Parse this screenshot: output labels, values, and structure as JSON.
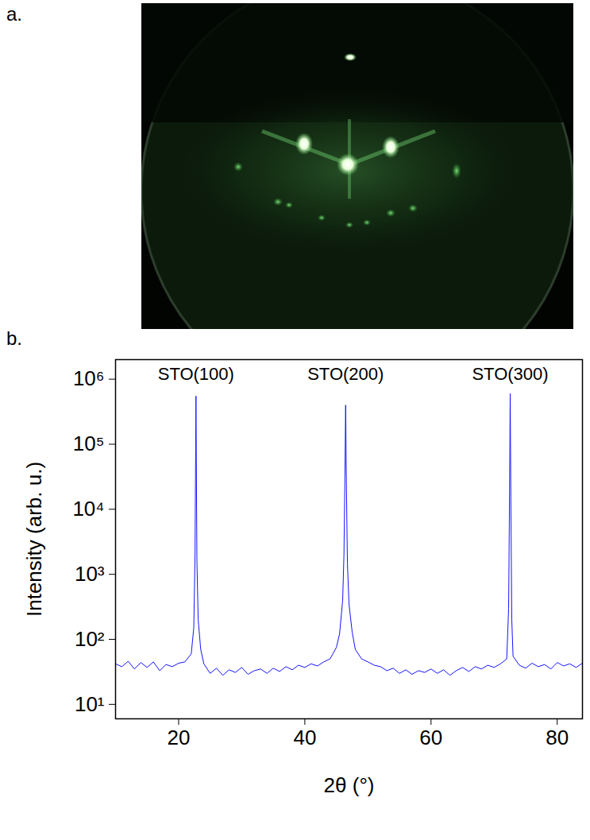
{
  "panel_labels": [
    "a.",
    "b."
  ],
  "chart_data": {
    "type": "line",
    "x_label": "2θ (°)",
    "y_label": "Intensity (arb. u.)",
    "log": "y",
    "grid": false,
    "color": "#1414ff",
    "xlim": [
      10,
      84
    ],
    "xticks": [
      20,
      40,
      60,
      80
    ],
    "ylim": [
      6,
      2000000
    ],
    "yticks": [
      {
        "value": 10,
        "label": "10¹"
      },
      {
        "value": 100,
        "label": "10²"
      },
      {
        "value": 1000,
        "label": "10³"
      },
      {
        "value": 10000,
        "label": "10⁴"
      },
      {
        "value": 100000,
        "label": "10⁵"
      },
      {
        "value": 1000000,
        "label": "10⁶"
      }
    ],
    "annotations": [
      {
        "text": "STO(100)",
        "x": 22.75,
        "y": 1200000
      },
      {
        "text": "STO(200)",
        "x": 46.47,
        "y": 1200000
      },
      {
        "text": "STO(300)",
        "x": 72.55,
        "y": 1200000
      }
    ],
    "x": [
      10,
      11,
      12,
      13,
      14,
      15,
      16,
      17,
      18,
      19,
      20,
      21,
      22,
      22.4,
      22.6,
      22.7,
      22.75,
      22.8,
      22.9,
      23.1,
      23.5,
      24,
      25,
      26,
      27,
      28,
      29,
      30,
      31,
      32,
      33,
      34,
      35,
      36,
      37,
      38,
      39,
      40,
      41,
      42,
      43,
      44,
      45,
      45.5,
      46,
      46.2,
      46.35,
      46.47,
      46.6,
      46.75,
      47,
      47.5,
      48,
      49,
      50,
      51,
      52,
      53,
      54,
      55,
      56,
      57,
      58,
      59,
      60,
      61,
      62,
      63,
      64,
      65,
      66,
      67,
      68,
      69,
      70,
      71,
      72,
      72.3,
      72.45,
      72.55,
      72.65,
      72.8,
      73,
      74,
      75,
      76,
      77,
      78,
      79,
      80,
      81,
      82,
      83,
      84
    ],
    "values": [
      42,
      38,
      46,
      35,
      44,
      37,
      45,
      33,
      41,
      38,
      43,
      45,
      60,
      150,
      2000,
      80000,
      550000,
      60000,
      1500,
      200,
      70,
      42,
      30,
      36,
      28,
      34,
      31,
      37,
      29,
      33,
      35,
      30,
      36,
      32,
      38,
      34,
      40,
      37,
      42,
      39,
      45,
      50,
      75,
      120,
      400,
      2000,
      30000,
      400000,
      20000,
      1500,
      350,
      130,
      70,
      50,
      45,
      40,
      38,
      33,
      36,
      30,
      34,
      29,
      33,
      31,
      35,
      30,
      34,
      28,
      33,
      37,
      32,
      38,
      35,
      40,
      37,
      42,
      50,
      300,
      20000,
      600000,
      15000,
      200,
      55,
      40,
      36,
      43,
      38,
      41,
      35,
      44,
      39,
      42,
      37,
      43
    ]
  }
}
